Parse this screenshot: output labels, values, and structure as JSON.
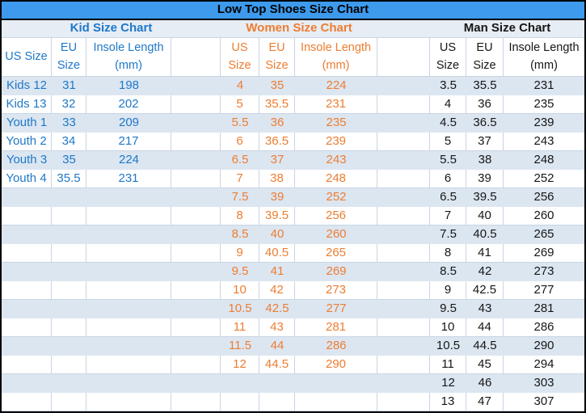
{
  "title": "Low Top Shoes Size Chart",
  "colors": {
    "title_bg": "#3D9AEC",
    "band_bg": "#DCE6F1",
    "section_bg": "#E7EDF5",
    "grid_line": "#C9D5E4",
    "kid_text": "#1E78C8",
    "women_text": "#ED7D31",
    "man_text": "#161616"
  },
  "sections": [
    {
      "name": "Kid Size Chart",
      "headers": [
        "US Size",
        "EU Size",
        "Insole Length (mm)"
      ],
      "rows": [
        [
          "Kids 12",
          "31",
          "198"
        ],
        [
          "Kids 13",
          "32",
          "202"
        ],
        [
          "Youth 1",
          "33",
          "209"
        ],
        [
          "Youth 2",
          "34",
          "217"
        ],
        [
          "Youth 3",
          "35",
          "224"
        ],
        [
          "Youth 4",
          "35.5",
          "231"
        ]
      ]
    },
    {
      "name": "Women Size Chart",
      "headers": [
        "US Size",
        "EU Size",
        "Insole Length (mm)"
      ],
      "rows": [
        [
          "4",
          "35",
          "224"
        ],
        [
          "5",
          "35.5",
          "231"
        ],
        [
          "5.5",
          "36",
          "235"
        ],
        [
          "6",
          "36.5",
          "239"
        ],
        [
          "6.5",
          "37",
          "243"
        ],
        [
          "7",
          "38",
          "248"
        ],
        [
          "7.5",
          "39",
          "252"
        ],
        [
          "8",
          "39.5",
          "256"
        ],
        [
          "8.5",
          "40",
          "260"
        ],
        [
          "9",
          "40.5",
          "265"
        ],
        [
          "9.5",
          "41",
          "269"
        ],
        [
          "10",
          "42",
          "273"
        ],
        [
          "10.5",
          "42.5",
          "277"
        ],
        [
          "11",
          "43",
          "281"
        ],
        [
          "11.5",
          "44",
          "286"
        ],
        [
          "12",
          "44.5",
          "290"
        ]
      ]
    },
    {
      "name": "Man Size Chart",
      "headers": [
        "US Size",
        "EU Size",
        "Insole Length (mm)"
      ],
      "rows": [
        [
          "3.5",
          "35.5",
          "231"
        ],
        [
          "4",
          "36",
          "235"
        ],
        [
          "4.5",
          "36.5",
          "239"
        ],
        [
          "5",
          "37",
          "243"
        ],
        [
          "5.5",
          "38",
          "248"
        ],
        [
          "6",
          "39",
          "252"
        ],
        [
          "6.5",
          "39.5",
          "256"
        ],
        [
          "7",
          "40",
          "260"
        ],
        [
          "7.5",
          "40.5",
          "265"
        ],
        [
          "8",
          "41",
          "269"
        ],
        [
          "8.5",
          "42",
          "273"
        ],
        [
          "9",
          "42.5",
          "277"
        ],
        [
          "9.5",
          "43",
          "281"
        ],
        [
          "10",
          "44",
          "286"
        ],
        [
          "10.5",
          "44.5",
          "290"
        ],
        [
          "11",
          "45",
          "294"
        ],
        [
          "12",
          "46",
          "303"
        ],
        [
          "13",
          "47",
          "307"
        ]
      ]
    }
  ],
  "total_data_rows": 18
}
